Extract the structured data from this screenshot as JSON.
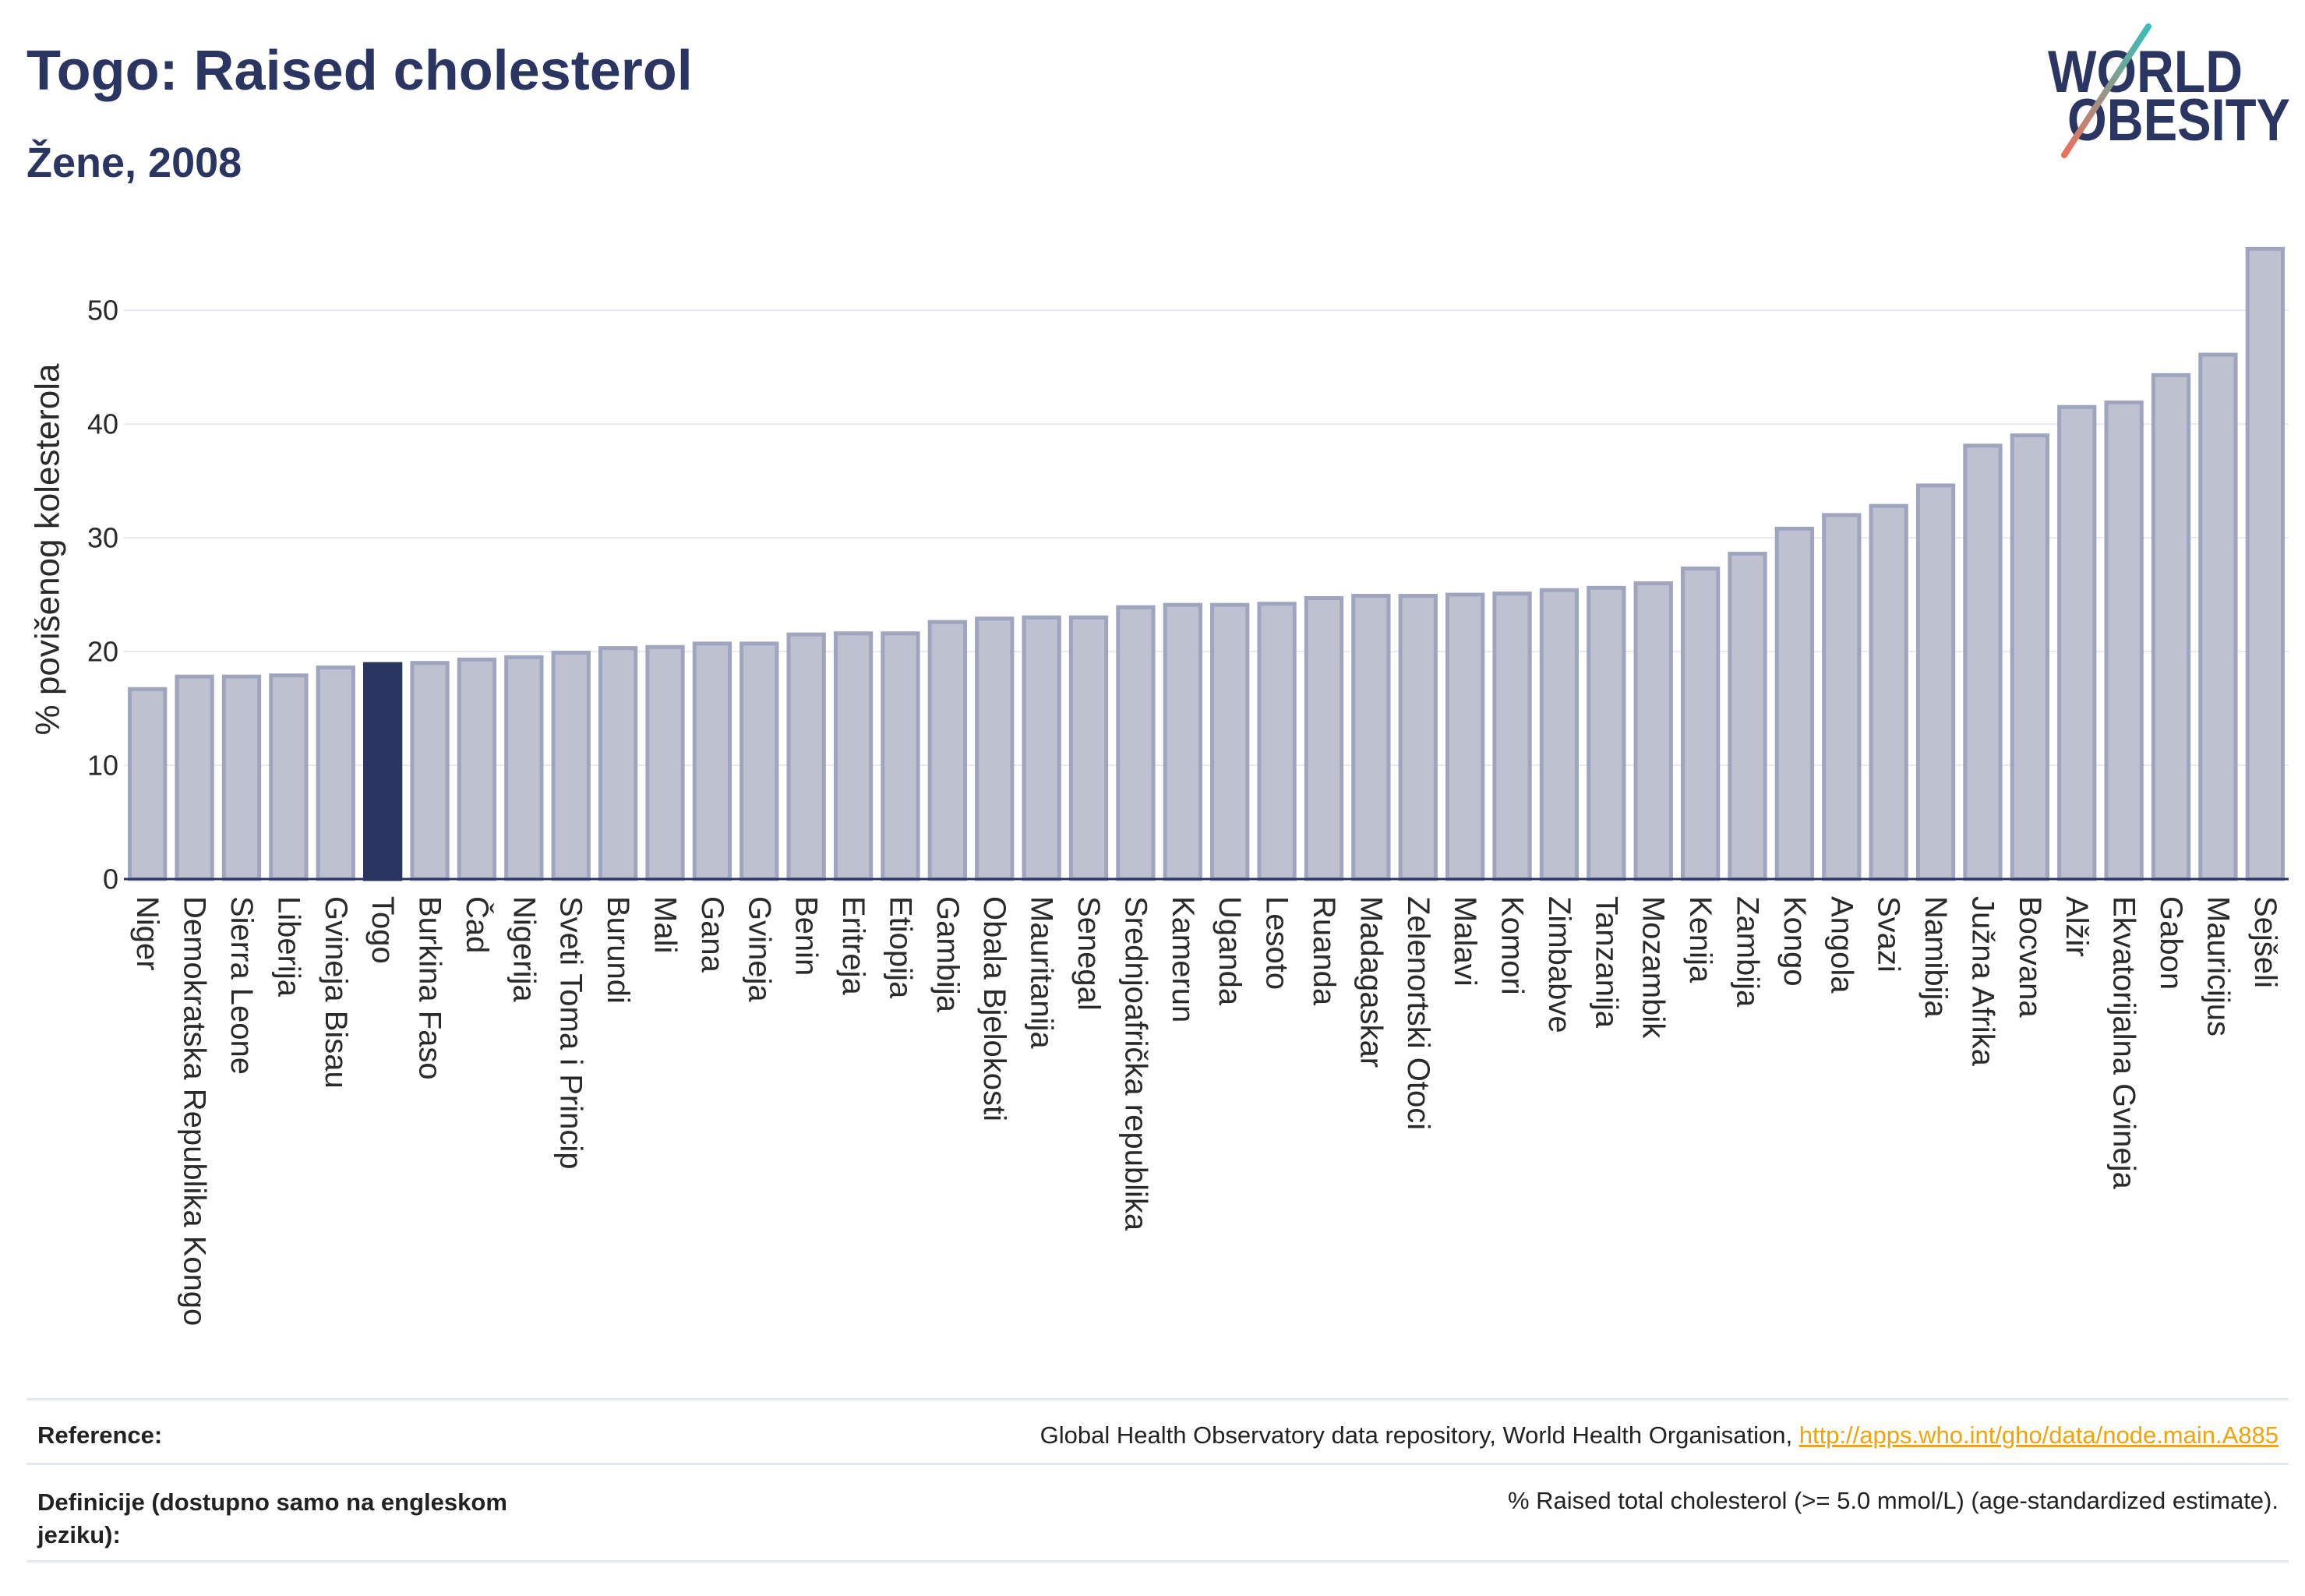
{
  "theme": {
    "navy": "#2b3561",
    "text": "#222222",
    "link": "#f0a30a",
    "rule": "#e6e8f0"
  },
  "logo": {
    "line1": "WORLD",
    "line2": "OBESITY",
    "colors": {
      "text": "#2b3561",
      "slash_top": "#35c0b8",
      "slash_bottom": "#ef6e5b"
    }
  },
  "chart_data": {
    "type": "bar",
    "title": "Togo: Raised cholesterol",
    "subtitle": "Žene, 2008",
    "xlabel": "",
    "ylabel": "% povišenog kolesterola",
    "ylim": [
      0,
      57
    ],
    "yticks": [
      0,
      10,
      20,
      30,
      40,
      50
    ],
    "grid": true,
    "highlight": "Togo",
    "colors": {
      "bar": "#bec1d0",
      "bar_outline": "#a0a5bf",
      "highlight": "#2b3561",
      "axis": "#2b3561",
      "grid": "#e8e9f1"
    },
    "categories": [
      "Niger",
      "Demokratska Republika Kongo",
      "Sierra Leone",
      "Liberija",
      "Gvineja Bisau",
      "Togo",
      "Burkina Faso",
      "Čad",
      "Nigerija",
      "Sveti Toma i Princip",
      "Burundi",
      "Mali",
      "Gana",
      "Gvineja",
      "Benin",
      "Eritreja",
      "Etiopija",
      "Gambija",
      "Obala Bjelokosti",
      "Mauritanija",
      "Senegal",
      "Srednjoafrička republika",
      "Kamerun",
      "Uganda",
      "Lesoto",
      "Ruanda",
      "Madagaskar",
      "Zelenortski Otoci",
      "Malavi",
      "Komori",
      "Zimbabve",
      "Tanzanija",
      "Mozambik",
      "Kenija",
      "Zambija",
      "Kongo",
      "Angola",
      "Svazi",
      "Namibija",
      "Južna Afrika",
      "Bocvana",
      "Alžir",
      "Ekvatorijalna Gvineja",
      "Gabon",
      "Mauricijus",
      "Sejšeli"
    ],
    "values": [
      16.7,
      17.8,
      17.8,
      17.9,
      18.6,
      18.9,
      19.0,
      19.3,
      19.5,
      19.9,
      20.3,
      20.4,
      20.7,
      20.7,
      21.5,
      21.6,
      21.6,
      22.6,
      22.9,
      23.0,
      23.0,
      23.9,
      24.1,
      24.1,
      24.2,
      24.7,
      24.9,
      24.9,
      25.0,
      25.1,
      25.4,
      25.6,
      26.0,
      27.3,
      28.6,
      30.8,
      32.0,
      32.8,
      34.6,
      38.1,
      39.0,
      41.5,
      41.9,
      44.3,
      46.1,
      55.4
    ]
  },
  "footer": {
    "reference_label": "Reference:",
    "reference_source": "Global Health Observatory data repository, World Health Organisation,",
    "reference_link": "http://apps.who.int/gho/data/node.main.A885",
    "definitions_label": "Definicije (dostupno samo na engleskom jeziku):",
    "definitions_text": "% Raised total cholesterol (>= 5.0 mmol/L) (age-standardized estimate)."
  }
}
